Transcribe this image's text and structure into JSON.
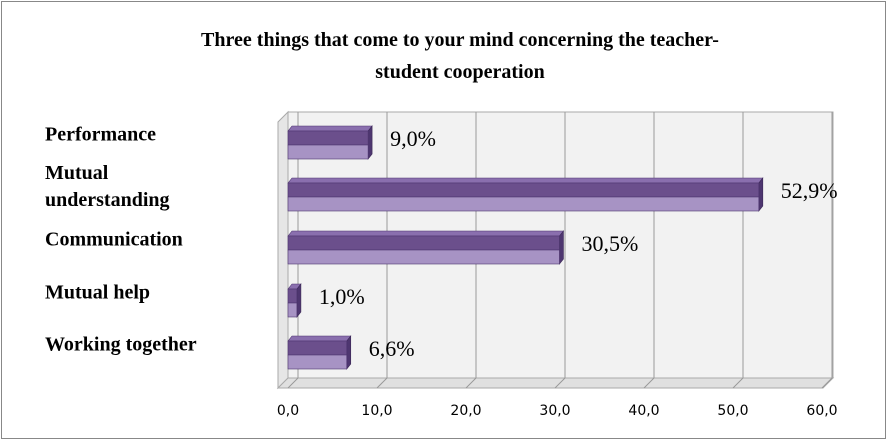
{
  "chart_data": {
    "type": "bar",
    "orientation": "horizontal",
    "title": "Three things that come to your mind concerning the teacher-student cooperation",
    "categories": [
      "Performance",
      "Mutual understanding",
      "Communication",
      "Mutual help",
      "Working together"
    ],
    "values": [
      9.0,
      52.9,
      30.5,
      1.0,
      6.6
    ],
    "value_labels": [
      "9,0%",
      "52,9%",
      "30,5%",
      "1,0%",
      "6,6%"
    ],
    "color": "#6b4f8c",
    "xlim": [
      0,
      60
    ],
    "xticks": [
      {
        "value": 0,
        "label": "0,0"
      },
      {
        "value": 10,
        "label": "10,0"
      },
      {
        "value": 20,
        "label": "20,0"
      },
      {
        "value": 30,
        "label": "30,0"
      },
      {
        "value": 40,
        "label": "40,0"
      },
      {
        "value": 50,
        "label": "50,0"
      },
      {
        "value": 60,
        "label": "60,0"
      }
    ],
    "grid": true
  }
}
